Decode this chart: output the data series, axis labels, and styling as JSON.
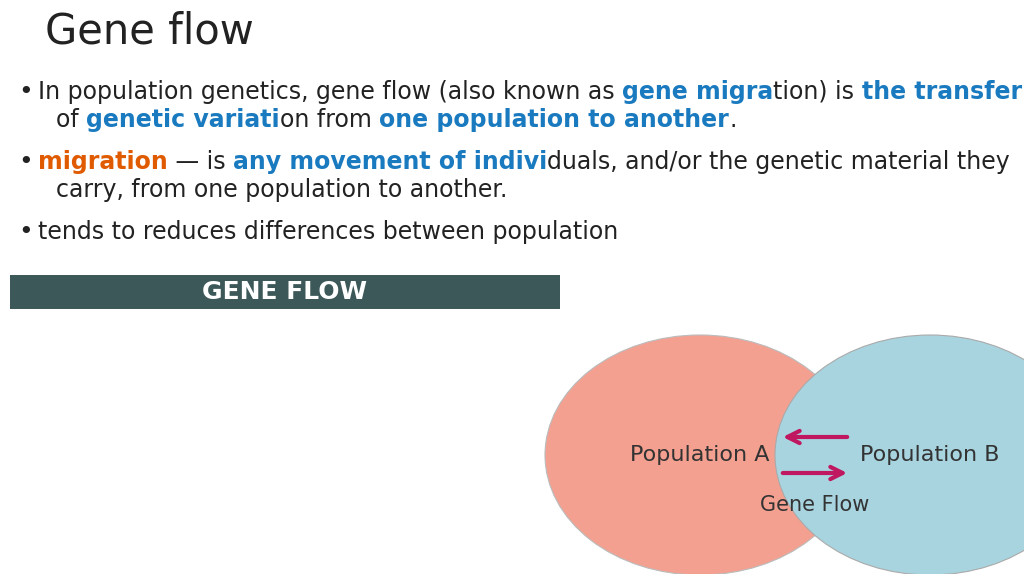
{
  "title": "Gene flow",
  "background_color": "#ffffff",
  "title_color": "#222222",
  "title_fontsize": 30,
  "pop_a_color": "#f4a090",
  "pop_b_color": "#a8d4e0",
  "pop_a_label": "Population A",
  "pop_b_label": "Population B",
  "gene_flow_label": "Gene Flow",
  "arrow_color": "#c01860",
  "gene_flow_banner_bg": "#3d5858",
  "gene_flow_banner_text": "GENE FLOW",
  "gene_flow_banner_text_color": "#ffffff",
  "font_size_body": 17,
  "bullet3": "tends to reduces differences between population"
}
